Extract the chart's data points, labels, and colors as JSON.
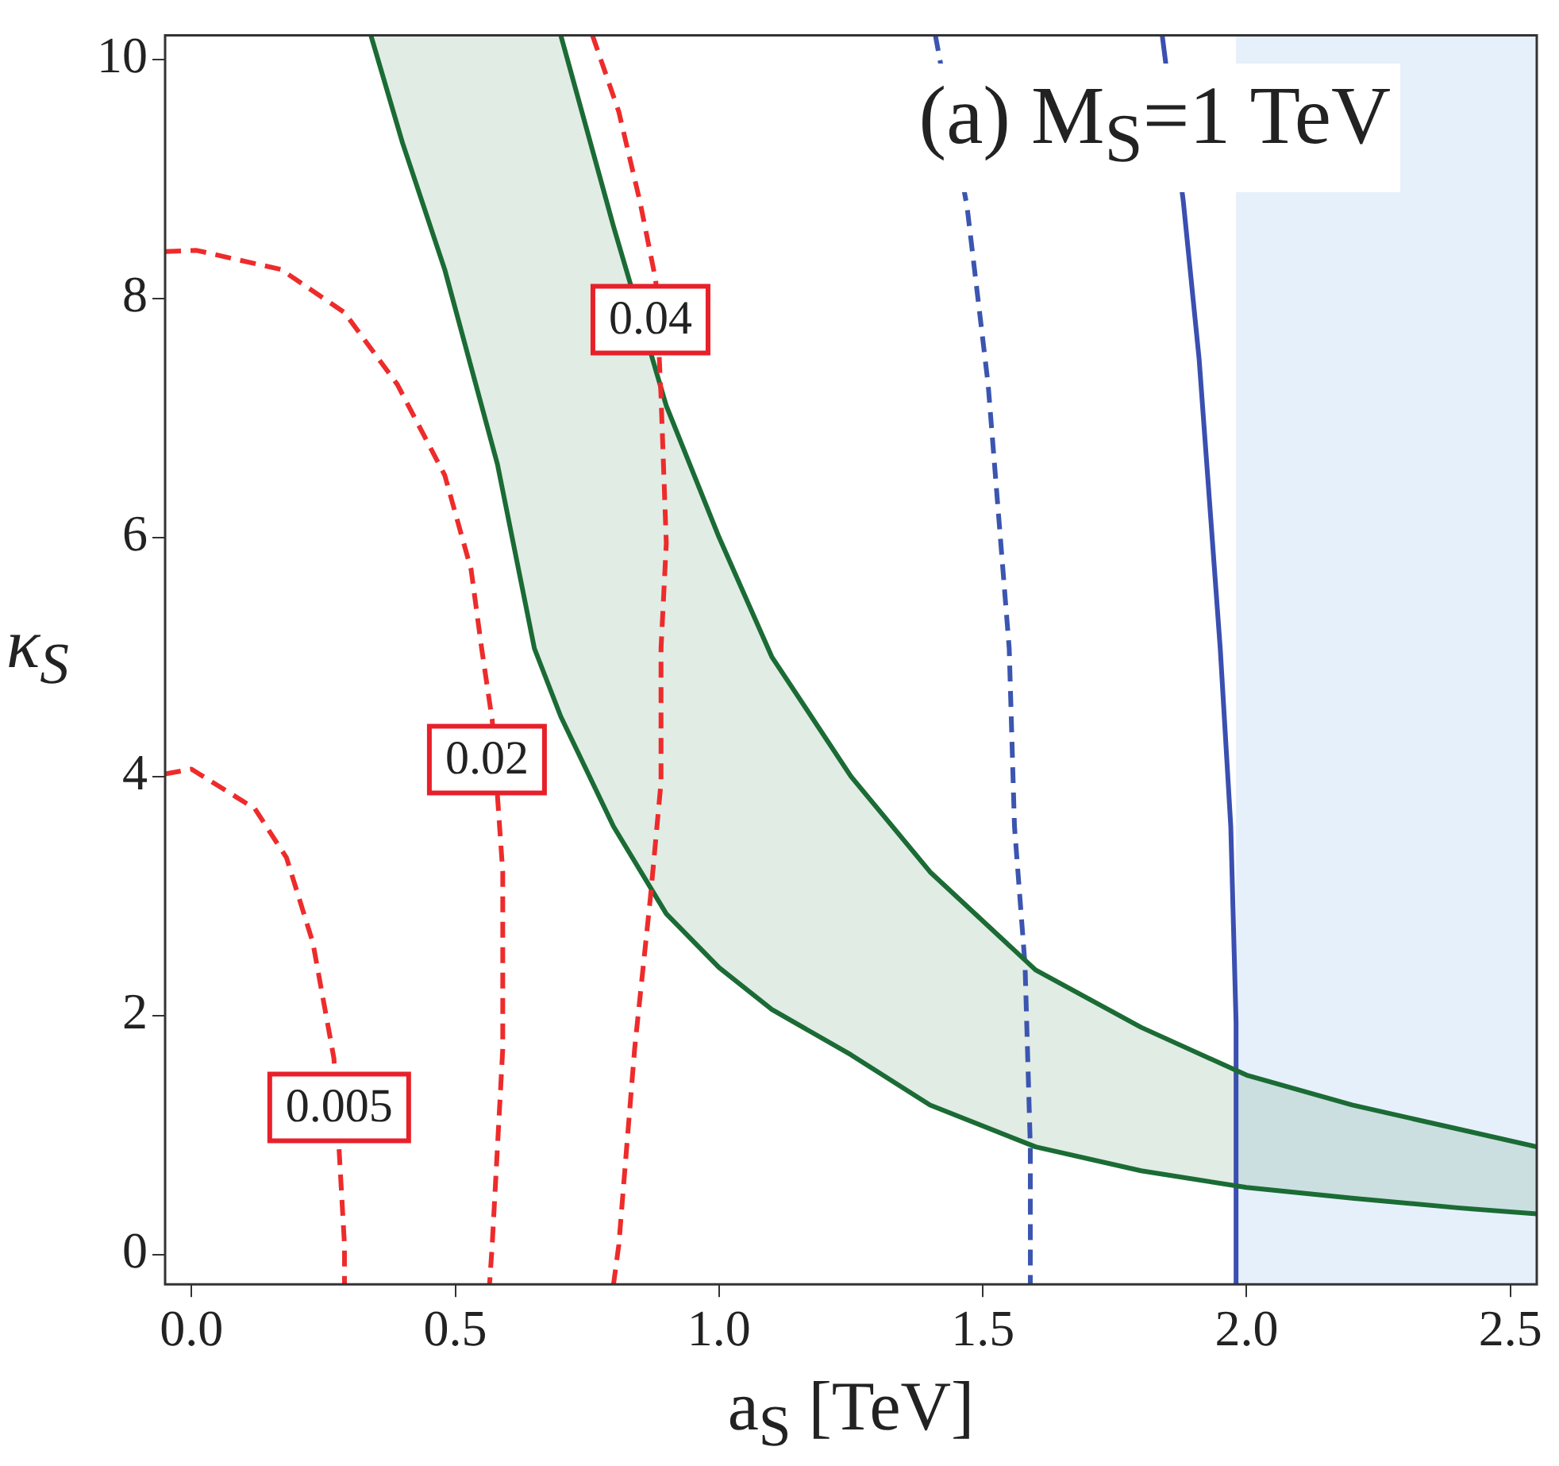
{
  "chart_data": {
    "type": "line",
    "xlabel": "a$_{S}$ [TeV]",
    "ylabel": "κ$_{S}$",
    "xlim": [
      -0.05,
      2.55
    ],
    "ylim": [
      -0.25,
      10.2
    ],
    "xticks": [
      {
        "value": 0,
        "label": "0.0"
      },
      {
        "value": 0.5,
        "label": "0.5"
      },
      {
        "value": 1,
        "label": "1.0"
      },
      {
        "value": 1.5,
        "label": "1.5"
      },
      {
        "value": 2,
        "label": "2.0"
      },
      {
        "value": 2.5,
        "label": "2.5"
      }
    ],
    "yticks": [
      0,
      2,
      4,
      6,
      8,
      10
    ],
    "grid": false,
    "legend": false,
    "marker": "none",
    "series": [
      {
        "type": "line",
        "color": "#ee2b2b",
        "line_style": "dashed",
        "x": [
          -0.05,
          0,
          0.12,
          0.18,
          0.23,
          0.27,
          0.29,
          0.29
        ],
        "values": [
          4.02,
          4.06,
          3.73,
          3.32,
          2.61,
          1.64,
          0.08,
          -0.25
        ]
      },
      {
        "type": "line",
        "color": "#ee2b2b",
        "line_style": "dashed",
        "x": [
          -0.05,
          0.01,
          0.17,
          0.29,
          0.39,
          0.48,
          0.53,
          0.55,
          0.57,
          0.59,
          0.59,
          0.57,
          0.565
        ],
        "values": [
          8.39,
          8.4,
          8.24,
          7.88,
          7.28,
          6.52,
          5.73,
          5.07,
          4.47,
          3.2,
          1.72,
          0.08,
          -0.25
        ]
      },
      {
        "type": "line",
        "color": "#ee2b2b",
        "line_style": "dashed",
        "x": [
          0.76,
          0.81,
          0.85,
          0.88,
          0.89,
          0.9,
          0.89,
          0.89,
          0.87,
          0.84,
          0.81,
          0.8
        ],
        "values": [
          10.2,
          9.56,
          8.81,
          8.15,
          7.18,
          5.95,
          5.07,
          3.95,
          2.99,
          1.72,
          0.08,
          -0.25
        ]
      },
      {
        "type": "line",
        "color": "#1b6b35",
        "line_style": "solid",
        "x": [
          0.34,
          0.4,
          0.48,
          0.58,
          0.65,
          0.7,
          0.8,
          0.9,
          1.0,
          1.1,
          1.25,
          1.4,
          1.6,
          1.8,
          2.0,
          2.2,
          2.4,
          2.55
        ],
        "values": [
          10.2,
          9.3,
          8.24,
          6.61,
          5.07,
          4.5,
          3.58,
          2.85,
          2.4,
          2.05,
          1.67,
          1.25,
          0.9,
          0.7,
          0.56,
          0.47,
          0.39,
          0.34
        ],
        "lower": [
          10.2,
          9.3,
          8.24,
          6.61,
          5.07,
          4.5,
          3.58,
          2.85,
          2.4,
          2.05,
          1.67,
          1.25,
          0.9,
          0.7,
          0.56,
          0.47,
          0.39,
          0.34
        ],
        "upper": [
          10.2,
          10.2,
          10.2,
          10.2,
          10.2,
          10.2,
          8.6,
          7.1,
          6.0,
          5.0,
          4.0,
          3.2,
          2.38,
          1.9,
          1.5,
          1.25,
          1.05,
          0.9
        ]
      },
      {
        "type": "line",
        "color": "#1b6b35",
        "line_style": "solid",
        "x": [
          0.7,
          0.8,
          0.9,
          1.0,
          1.1,
          1.25,
          1.4,
          1.6,
          1.8,
          2.0,
          2.2,
          2.4,
          2.55
        ],
        "values": [
          10.2,
          8.6,
          7.1,
          6.0,
          5.0,
          4.0,
          3.2,
          2.38,
          1.9,
          1.5,
          1.25,
          1.05,
          0.9
        ]
      },
      {
        "type": "line",
        "color": "#3b55b0",
        "line_style": "dashed",
        "x": [
          1.41,
          1.47,
          1.51,
          1.55,
          1.56,
          1.58,
          1.59,
          1.59,
          1.59
        ],
        "values": [
          10.2,
          8.77,
          7.28,
          5.07,
          3.58,
          2.42,
          0.9,
          0.08,
          -0.25
        ]
      },
      {
        "type": "line",
        "color": "#3a4fb0",
        "line_style": "solid",
        "x": [
          1.84,
          1.88,
          1.91,
          1.95,
          1.97,
          1.98,
          1.98
        ],
        "values": [
          10.2,
          8.81,
          7.49,
          5.07,
          3.58,
          1.94,
          -0.25
        ]
      }
    ],
    "bands": [
      {
        "axis": "x",
        "from": 1.98,
        "to": 2.55,
        "color": "#e6f0fb"
      }
    ],
    "annotations": [
      "(a) M$_{S}$=1 TeV",
      {
        "text": "0.005",
        "x": 0.28,
        "y": 1.23
      },
      {
        "text": "0.02",
        "x": 0.56,
        "y": 4.14
      },
      {
        "text": "0.04",
        "x": 0.87,
        "y": 7.82
      }
    ]
  }
}
